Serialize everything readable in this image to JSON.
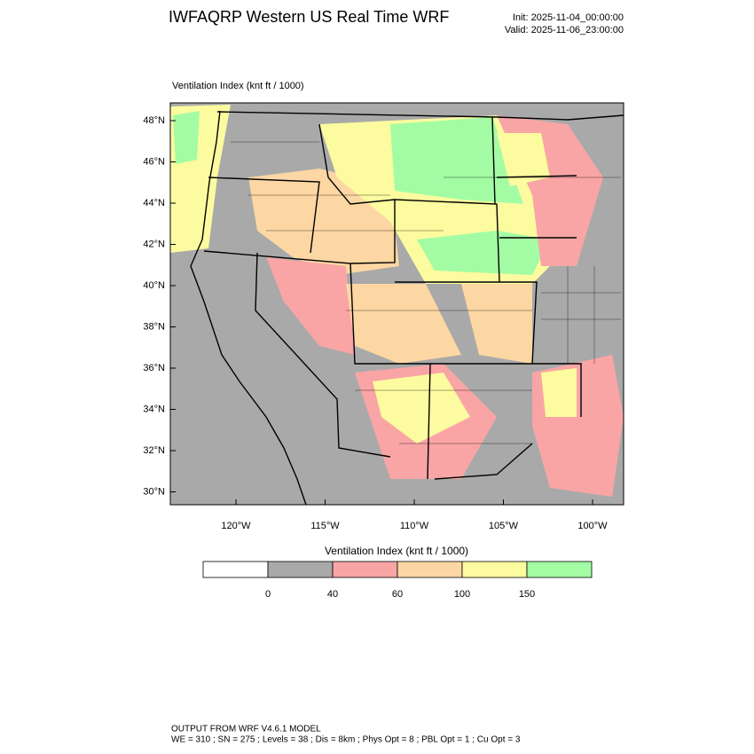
{
  "header": {
    "title": "IWFAQRP Western US Real Time WRF",
    "init": "Init: 2025-11-04_00:00:00",
    "valid": "Valid: 2025-11-06_23:00:00"
  },
  "map": {
    "label": "Ventilation Index   (knt ft / 1000)",
    "lat_labels": [
      "48°N",
      "46°N",
      "44°N",
      "42°N",
      "40°N",
      "38°N",
      "36°N",
      "34°N",
      "32°N",
      "30°N"
    ],
    "lon_labels": [
      "120°W",
      "115°W",
      "110°W",
      "105°W",
      "100°W"
    ]
  },
  "colorbar": {
    "title": "Ventilation Index   (knt ft / 1000)",
    "levels": [
      0,
      40,
      60,
      100,
      150
    ],
    "colors": [
      "#ffffff",
      "#a9a9a9",
      "#f9a5a5",
      "#fcd7a3",
      "#fcfb9f",
      "#a3fca3"
    ]
  },
  "footer": {
    "line1": "OUTPUT FROM WRF V4.6.1 MODEL",
    "line2": "WE = 310 ; SN = 275 ; Levels = 38 ; Dis = 8km ; Phys Opt = 8 ; PBL Opt = 1 ; Cu Opt = 3"
  }
}
